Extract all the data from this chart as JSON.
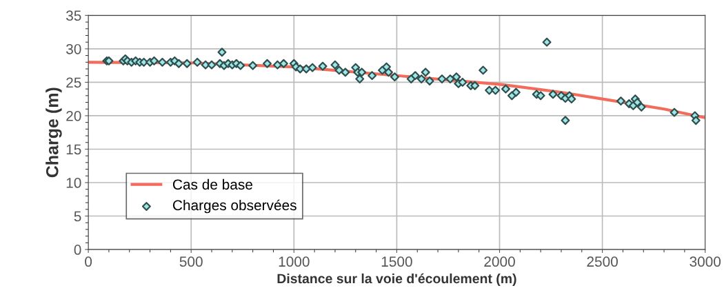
{
  "chart_data": {
    "type": "scatter",
    "xlabel": "Distance sur la voie d'écoulement (m)",
    "ylabel": "Charge (m)",
    "xlim": [
      0,
      3000
    ],
    "xticks": [
      0,
      500,
      1000,
      1500,
      2000,
      2500,
      3000
    ],
    "ylim": [
      0,
      35
    ],
    "yticks": [
      0,
      5,
      10,
      15,
      20,
      25,
      30,
      35
    ],
    "grid": true,
    "legend": "bottom left",
    "series": [
      {
        "name": "Cas de base",
        "type": "line",
        "color": "#f26b5b",
        "marker": "none",
        "x": [
          0,
          500,
          1000,
          1500,
          2000,
          2300,
          2500,
          2800,
          3000
        ],
        "values": [
          28.0,
          27.9,
          27.3,
          26.0,
          24.7,
          23.5,
          22.5,
          21.0,
          19.7
        ]
      },
      {
        "name": "Charges observées",
        "color": "#2f4f4f",
        "marker": "diamond",
        "x": [
          90,
          100,
          170,
          180,
          190,
          210,
          230,
          250,
          270,
          300,
          320,
          360,
          400,
          420,
          440,
          480,
          530,
          570,
          600,
          640,
          650,
          660,
          680,
          700,
          720,
          740,
          800,
          870,
          920,
          950,
          1000,
          1010,
          1030,
          1060,
          1090,
          1140,
          1200,
          1220,
          1250,
          1300,
          1310,
          1320,
          1330,
          1380,
          1430,
          1450,
          1460,
          1490,
          1570,
          1590,
          1620,
          1640,
          1660,
          1720,
          1760,
          1790,
          1800,
          1820,
          1860,
          1880,
          1920,
          1950,
          1980,
          2030,
          2060,
          2080,
          2180,
          2200,
          2230,
          2260,
          2300,
          2320,
          2320,
          2340,
          2350,
          2590,
          2630,
          2650,
          2660,
          2670,
          2690,
          2850,
          2950,
          2955
        ],
        "values": [
          28.2,
          28.2,
          28.2,
          28.5,
          28.2,
          28.0,
          28.2,
          28.0,
          28.0,
          28.0,
          28.2,
          28.0,
          28.0,
          28.2,
          27.8,
          27.8,
          28.0,
          27.6,
          27.6,
          27.8,
          29.5,
          27.5,
          27.8,
          27.6,
          27.8,
          27.5,
          27.5,
          27.8,
          27.6,
          27.8,
          27.8,
          27.3,
          27.0,
          27.0,
          27.2,
          27.4,
          27.6,
          26.8,
          26.5,
          27.2,
          26.5,
          25.5,
          26.5,
          26.0,
          26.8,
          27.3,
          26.5,
          25.8,
          25.5,
          26.0,
          25.5,
          26.5,
          25.2,
          25.5,
          25.5,
          25.8,
          24.8,
          25.0,
          24.5,
          24.5,
          26.8,
          23.8,
          23.8,
          24.0,
          23.0,
          23.5,
          23.2,
          23.0,
          31.0,
          23.2,
          23.0,
          19.3,
          22.6,
          23.0,
          22.5,
          22.2,
          21.8,
          21.5,
          22.5,
          22.0,
          21.3,
          20.5,
          20.0,
          19.3
        ]
      }
    ]
  }
}
